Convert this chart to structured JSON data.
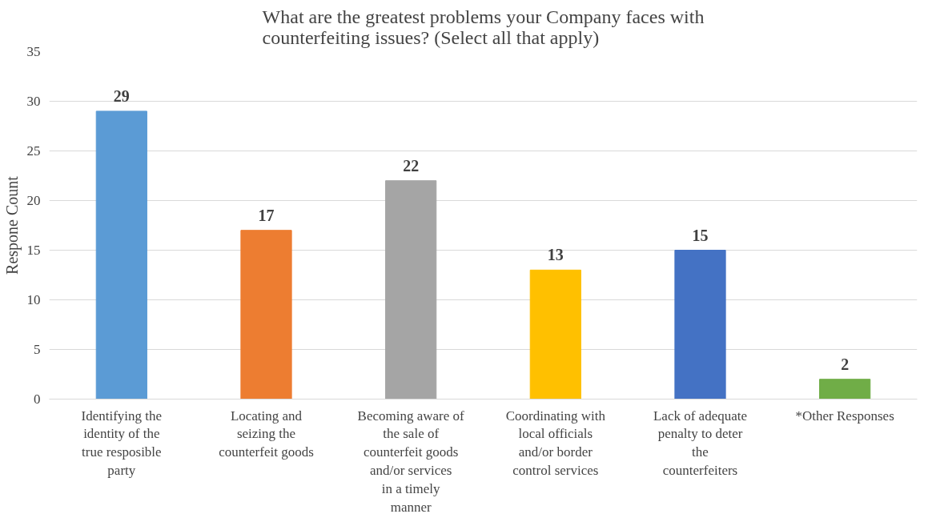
{
  "chart_data": {
    "type": "bar",
    "title": "What are the greatest problems your Company faces with counterfeiting issues? (Select all that apply)",
    "ylabel": "Respone Count",
    "categories": [
      "Identifying the identity of the true resposible party",
      "Locating and seizing the counterfeit goods",
      "Becoming aware of the sale of counterfeit goods and/or services in a timely manner",
      "Coordinating with local officials and/or border control services",
      "Lack of adequate penalty to deter the counterfeiters",
      "*Other Responses"
    ],
    "values": [
      29,
      17,
      22,
      13,
      15,
      2
    ],
    "colors": [
      "#5b9bd5",
      "#ed7d31",
      "#a5a5a5",
      "#ffc000",
      "#4472c4",
      "#70ad47"
    ],
    "ylim": [
      0,
      35
    ],
    "yticks": [
      0,
      5,
      10,
      15,
      20,
      25,
      30,
      35
    ],
    "grid": "y",
    "data_labels": true
  }
}
